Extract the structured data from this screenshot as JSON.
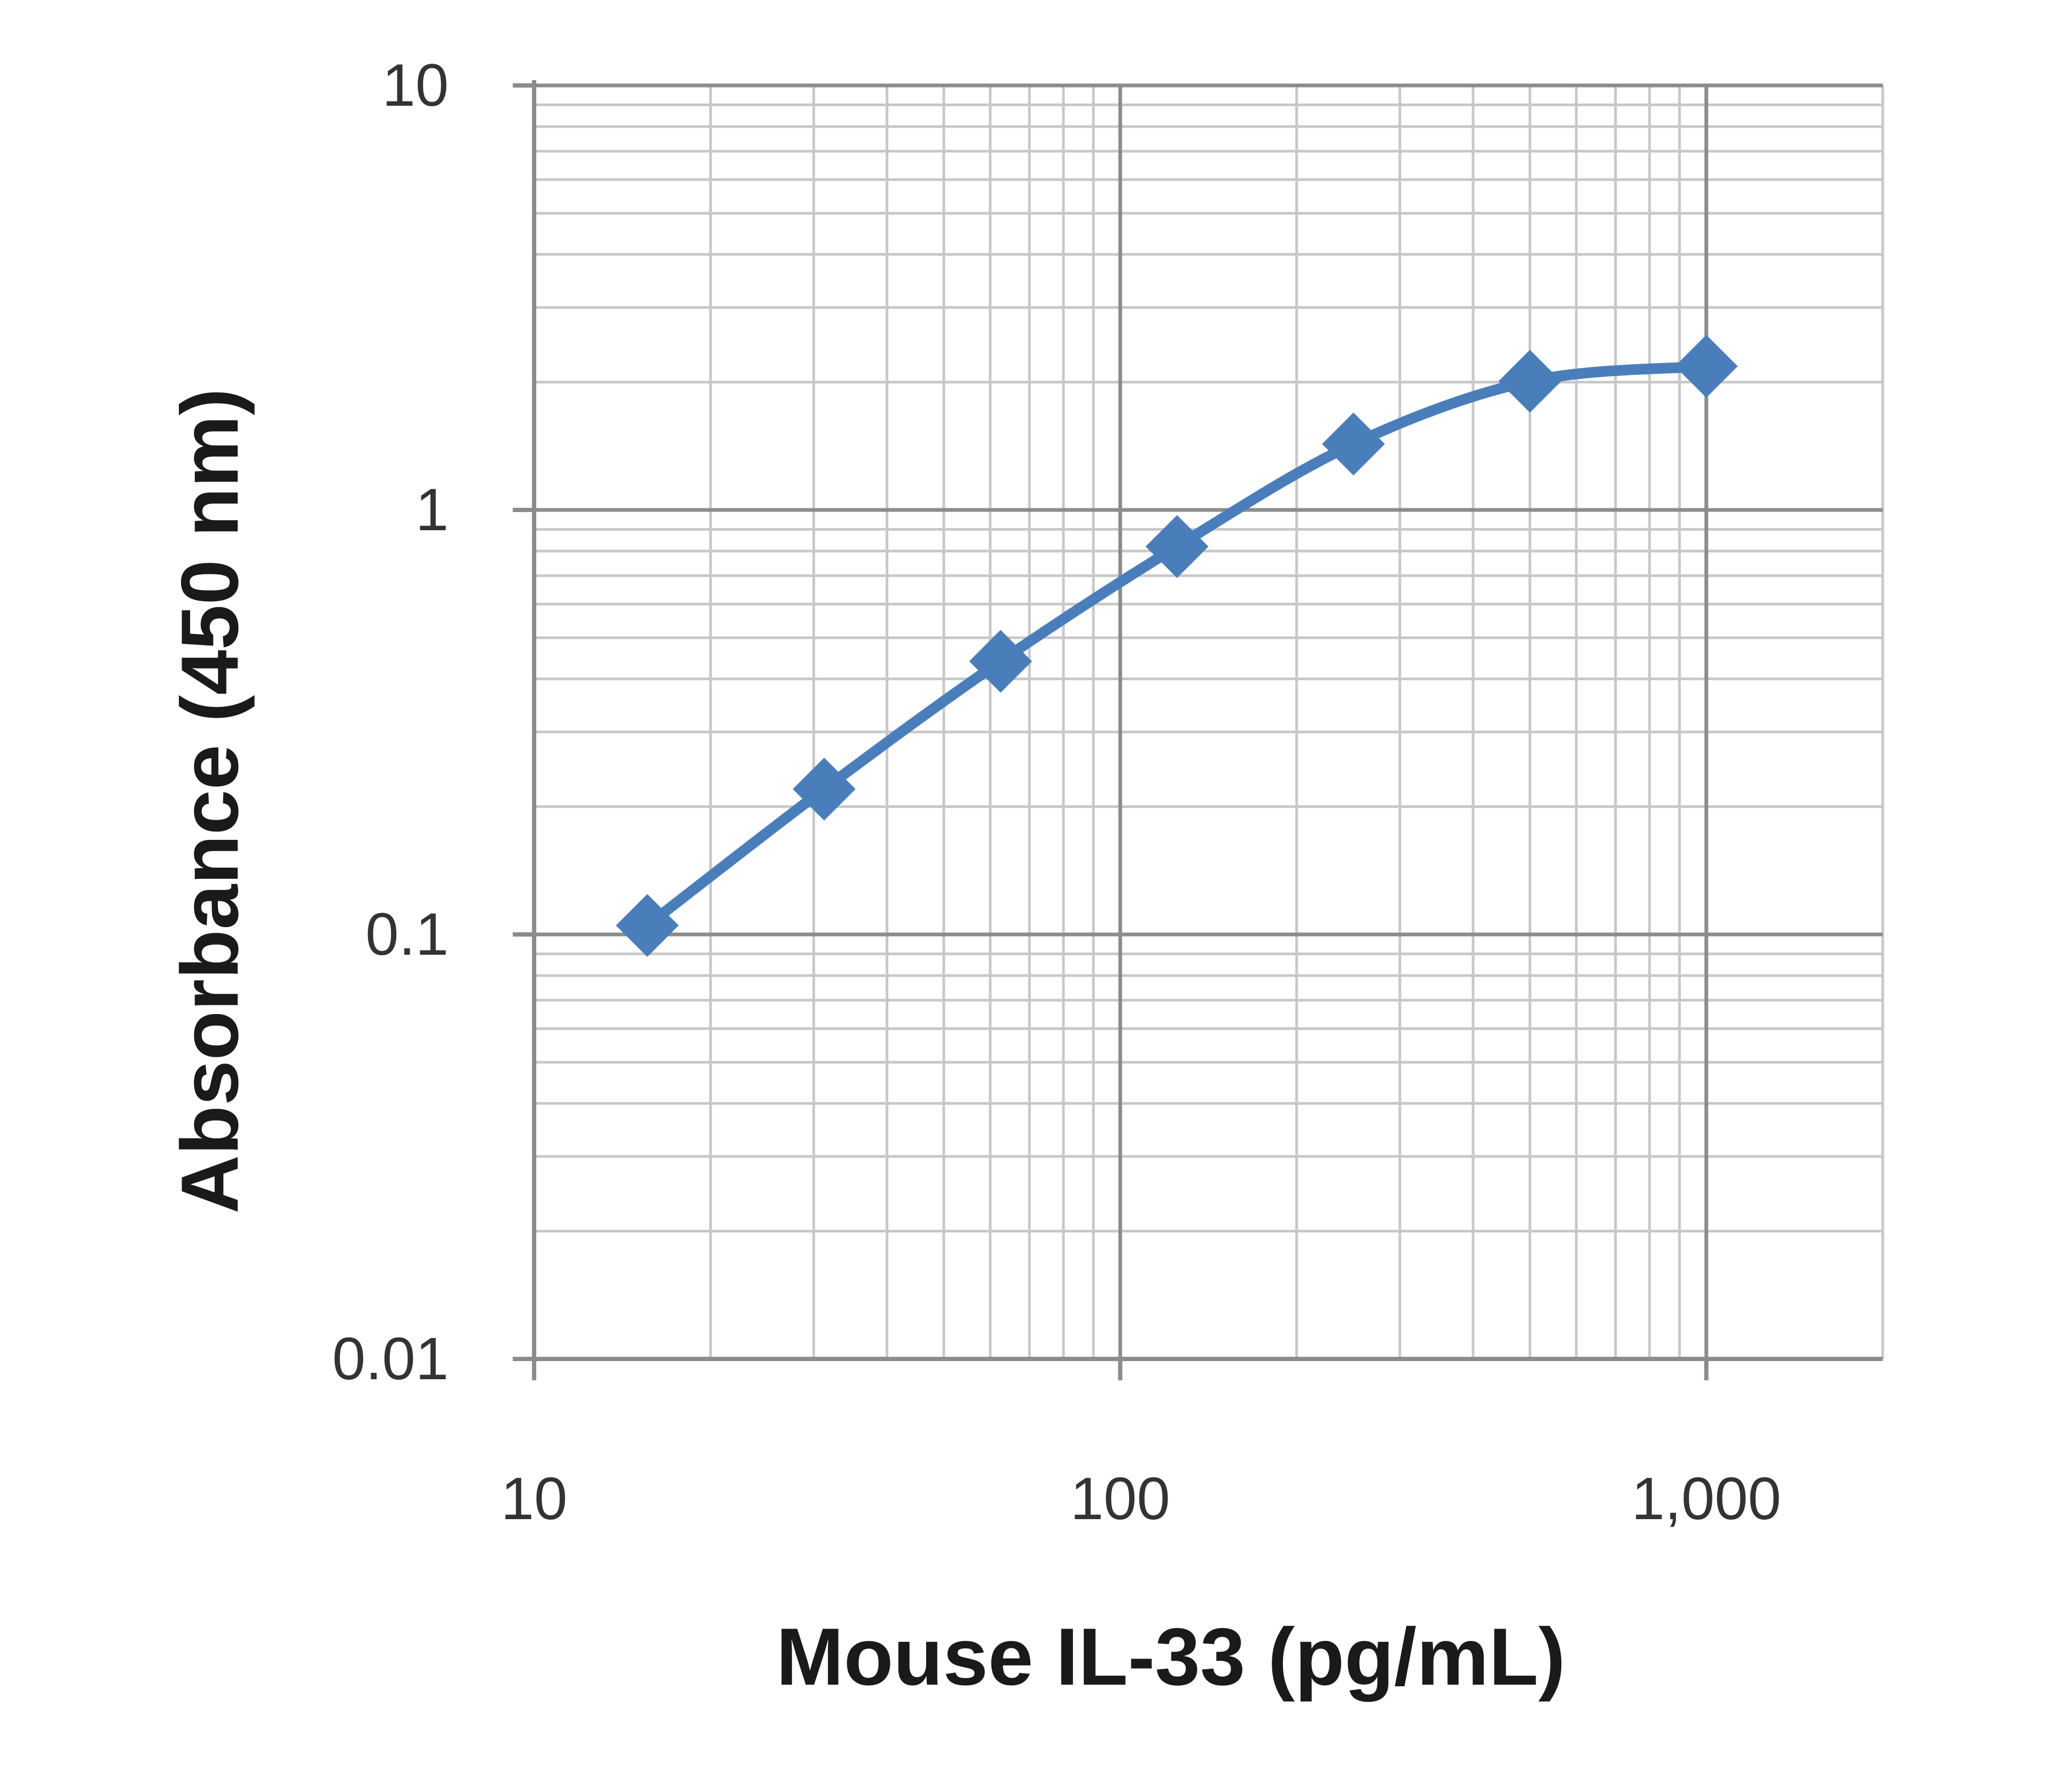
{
  "chart_data": {
    "type": "line",
    "x_scale": "log",
    "y_scale": "log",
    "xlabel": "Mouse IL-33 (pg/mL)",
    "ylabel": "Absorbance (450 nm)",
    "xlim": [
      10,
      2000
    ],
    "ylim": [
      0.01,
      10
    ],
    "x_ticks": [
      10,
      100,
      1000
    ],
    "x_tick_labels": [
      "10",
      "100",
      "1,000"
    ],
    "y_ticks": [
      0.01,
      0.1,
      1,
      10
    ],
    "y_tick_labels": [
      "0.01",
      "0.1",
      "1",
      "10"
    ],
    "grid": true,
    "legend": "none",
    "series": [
      {
        "x": [
          15.6,
          31.25,
          62.5,
          125,
          250,
          500,
          1000
        ],
        "y": [
          0.105,
          0.22,
          0.44,
          0.82,
          1.43,
          2.01,
          2.18
        ],
        "color": "#4a7ebb",
        "marker": "diamond",
        "smooth": true
      }
    ]
  }
}
